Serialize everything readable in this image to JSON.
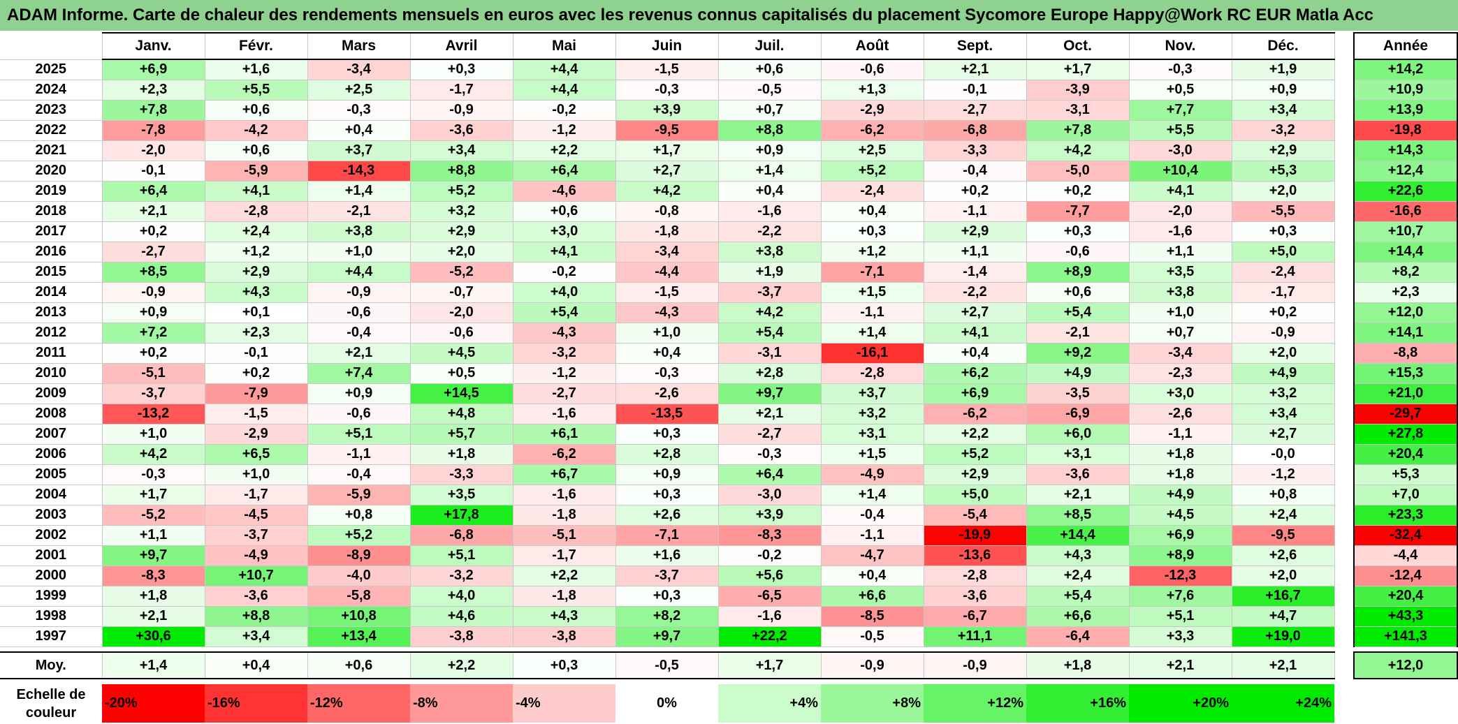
{
  "title": "ADAM Informe. Carte de chaleur des rendements mensuels en euros avec les revenus connus capitalisés du placement Sycomore Europe Happy@Work RC EUR Matla Acc",
  "chart_data": {
    "type": "heatmap",
    "title": "ADAM Informe. Carte de chaleur des rendements mensuels en euros avec les revenus connus capitalisés du placement Sycomore Europe Happy@Work RC EUR Matla Acc",
    "months": [
      "Janv.",
      "Févr.",
      "Mars",
      "Avril",
      "Mai",
      "Juin",
      "Juil.",
      "Août",
      "Sept.",
      "Oct.",
      "Nov.",
      "Déc."
    ],
    "year_header": "Année",
    "avg_label": "Moy.",
    "rows": [
      {
        "year": "2025",
        "values": [
          "+6,9",
          "+1,6",
          "-3,4",
          "+0,3",
          "+4,4",
          "-1,5",
          "+0,6",
          "-0,6",
          "+2,1",
          "+1,7",
          "-0,3",
          "+1,9"
        ],
        "annual": "+14,2"
      },
      {
        "year": "2024",
        "values": [
          "+2,3",
          "+5,5",
          "+2,5",
          "-1,7",
          "+4,4",
          "-0,3",
          "-0,5",
          "+1,3",
          "-0,1",
          "-3,9",
          "+0,5",
          "+0,9"
        ],
        "annual": "+10,9"
      },
      {
        "year": "2023",
        "values": [
          "+7,8",
          "+0,6",
          "-0,3",
          "-0,9",
          "-0,2",
          "+3,9",
          "+0,7",
          "-2,9",
          "-2,7",
          "-3,1",
          "+7,7",
          "+3,4"
        ],
        "annual": "+13,9"
      },
      {
        "year": "2022",
        "values": [
          "-7,8",
          "-4,2",
          "+0,4",
          "-3,6",
          "-1,2",
          "-9,5",
          "+8,8",
          "-6,2",
          "-6,8",
          "+7,8",
          "+5,5",
          "-3,2"
        ],
        "annual": "-19,8"
      },
      {
        "year": "2021",
        "values": [
          "-2,0",
          "+0,6",
          "+3,7",
          "+3,4",
          "+2,2",
          "+1,7",
          "+0,9",
          "+2,5",
          "-3,3",
          "+4,2",
          "-3,0",
          "+2,9"
        ],
        "annual": "+14,3"
      },
      {
        "year": "2020",
        "values": [
          "-0,1",
          "-5,9",
          "-14,3",
          "+8,8",
          "+6,4",
          "+2,7",
          "+1,4",
          "+5,2",
          "-0,4",
          "-5,0",
          "+10,4",
          "+5,3"
        ],
        "annual": "+12,4"
      },
      {
        "year": "2019",
        "values": [
          "+6,4",
          "+4,1",
          "+1,4",
          "+5,2",
          "-4,6",
          "+4,2",
          "+0,4",
          "-2,4",
          "+0,2",
          "+0,2",
          "+4,1",
          "+2,0"
        ],
        "annual": "+22,6"
      },
      {
        "year": "2018",
        "values": [
          "+2,1",
          "-2,8",
          "-2,1",
          "+3,2",
          "+0,6",
          "-0,8",
          "-1,6",
          "+0,4",
          "-1,1",
          "-7,7",
          "-2,0",
          "-5,5"
        ],
        "annual": "-16,6"
      },
      {
        "year": "2017",
        "values": [
          "+0,2",
          "+2,4",
          "+3,8",
          "+2,9",
          "+3,0",
          "-1,8",
          "-2,2",
          "+0,3",
          "+2,9",
          "+0,3",
          "-1,6",
          "+0,3"
        ],
        "annual": "+10,7"
      },
      {
        "year": "2016",
        "values": [
          "-2,7",
          "+1,2",
          "+1,0",
          "+2,0",
          "+4,1",
          "-3,4",
          "+3,8",
          "+1,2",
          "+1,1",
          "-0,6",
          "+1,1",
          "+5,0"
        ],
        "annual": "+14,4"
      },
      {
        "year": "2015",
        "values": [
          "+8,5",
          "+2,9",
          "+4,4",
          "-5,2",
          "-0,2",
          "-4,4",
          "+1,9",
          "-7,1",
          "-1,4",
          "+8,9",
          "+3,5",
          "-2,4"
        ],
        "annual": "+8,2"
      },
      {
        "year": "2014",
        "values": [
          "-0,9",
          "+4,3",
          "-0,9",
          "-0,7",
          "+4,0",
          "-1,5",
          "-3,7",
          "+1,5",
          "-2,2",
          "+0,6",
          "+3,8",
          "-1,7"
        ],
        "annual": "+2,3"
      },
      {
        "year": "2013",
        "values": [
          "+0,9",
          "+0,1",
          "-0,6",
          "-2,0",
          "+5,4",
          "-4,3",
          "+4,2",
          "-1,1",
          "+2,7",
          "+5,4",
          "+1,0",
          "+0,2"
        ],
        "annual": "+12,0"
      },
      {
        "year": "2012",
        "values": [
          "+7,2",
          "+2,3",
          "-0,4",
          "-0,6",
          "-4,3",
          "+1,0",
          "+5,4",
          "+1,4",
          "+4,1",
          "-2,1",
          "+0,7",
          "-0,9"
        ],
        "annual": "+14,1"
      },
      {
        "year": "2011",
        "values": [
          "+0,2",
          "-0,1",
          "+2,1",
          "+4,5",
          "-3,2",
          "+0,4",
          "-3,1",
          "-16,1",
          "+0,4",
          "+9,2",
          "-3,4",
          "+2,0"
        ],
        "annual": "-8,8"
      },
      {
        "year": "2010",
        "values": [
          "-5,1",
          "+0,2",
          "+7,4",
          "+0,5",
          "-1,2",
          "-0,3",
          "+2,8",
          "-2,8",
          "+6,2",
          "+4,9",
          "-2,3",
          "+4,9"
        ],
        "annual": "+15,3"
      },
      {
        "year": "2009",
        "values": [
          "-3,7",
          "-7,9",
          "+0,9",
          "+14,5",
          "-2,7",
          "-2,6",
          "+9,7",
          "+3,7",
          "+6,9",
          "-3,5",
          "+3,0",
          "+3,2"
        ],
        "annual": "+21,0"
      },
      {
        "year": "2008",
        "values": [
          "-13,2",
          "-1,5",
          "-0,6",
          "+4,8",
          "-1,6",
          "-13,5",
          "+2,1",
          "+3,2",
          "-6,2",
          "-6,9",
          "-2,6",
          "+3,4"
        ],
        "annual": "-29,7"
      },
      {
        "year": "2007",
        "values": [
          "+1,0",
          "-2,9",
          "+5,1",
          "+5,7",
          "+6,1",
          "+0,3",
          "-2,7",
          "+3,1",
          "+2,2",
          "+6,0",
          "-1,1",
          "+2,7"
        ],
        "annual": "+27,8"
      },
      {
        "year": "2006",
        "values": [
          "+4,2",
          "+6,5",
          "-1,1",
          "+1,8",
          "-6,2",
          "+2,8",
          "-0,3",
          "+1,5",
          "+5,2",
          "+3,1",
          "+1,8",
          "-0,0"
        ],
        "annual": "+20,4"
      },
      {
        "year": "2005",
        "values": [
          "-0,3",
          "+1,0",
          "-0,4",
          "-3,3",
          "+6,7",
          "+0,9",
          "+6,4",
          "-4,9",
          "+2,9",
          "-3,6",
          "+1,8",
          "-1,2"
        ],
        "annual": "+5,3"
      },
      {
        "year": "2004",
        "values": [
          "+1,7",
          "-1,7",
          "-5,9",
          "+3,5",
          "-1,6",
          "+0,3",
          "-3,0",
          "+1,4",
          "+5,0",
          "+2,1",
          "+4,9",
          "+0,8"
        ],
        "annual": "+7,0"
      },
      {
        "year": "2003",
        "values": [
          "-5,2",
          "-4,5",
          "+0,8",
          "+17,8",
          "-1,8",
          "+2,6",
          "+3,9",
          "-0,4",
          "-5,4",
          "+8,5",
          "+4,5",
          "+2,4"
        ],
        "annual": "+23,3"
      },
      {
        "year": "2002",
        "values": [
          "+1,1",
          "-3,7",
          "+5,2",
          "-6,8",
          "-5,1",
          "-7,1",
          "-8,3",
          "-1,1",
          "-19,9",
          "+14,4",
          "+6,9",
          "-9,5"
        ],
        "annual": "-32,4"
      },
      {
        "year": "2001",
        "values": [
          "+9,7",
          "-4,9",
          "-8,9",
          "+5,1",
          "-1,7",
          "+1,6",
          "-0,2",
          "-4,7",
          "-13,6",
          "+4,3",
          "+8,9",
          "+2,6"
        ],
        "annual": "-4,4"
      },
      {
        "year": "2000",
        "values": [
          "-8,3",
          "+10,7",
          "-4,0",
          "-3,2",
          "+2,2",
          "-3,7",
          "+5,6",
          "+0,4",
          "-2,8",
          "+2,4",
          "-12,3",
          "+2,0"
        ],
        "annual": "-12,4"
      },
      {
        "year": "1999",
        "values": [
          "+1,8",
          "-3,6",
          "-5,8",
          "+4,0",
          "-1,8",
          "+0,3",
          "-6,5",
          "+6,6",
          "-3,6",
          "+5,4",
          "+7,6",
          "+16,7"
        ],
        "annual": "+20,4"
      },
      {
        "year": "1998",
        "values": [
          "+2,1",
          "+8,8",
          "+10,8",
          "+4,6",
          "+4,3",
          "+8,2",
          "-1,6",
          "-8,5",
          "-6,7",
          "+6,6",
          "+5,1",
          "+4,7"
        ],
        "annual": "+43,3"
      },
      {
        "year": "1997",
        "values": [
          "+30,6",
          "+3,4",
          "+13,4",
          "-3,8",
          "-3,8",
          "+9,7",
          "+22,2",
          "-0,5",
          "+11,1",
          "-6,4",
          "+3,3",
          "+19,0"
        ],
        "annual": "+141,3"
      }
    ],
    "averages": [
      "+1,4",
      "+0,4",
      "+0,6",
      "+2,2",
      "+0,3",
      "-0,5",
      "+1,7",
      "-0,9",
      "-0,9",
      "+1,8",
      "+2,1",
      "+2,1"
    ],
    "average_annual": "+12,0",
    "color_scale": {
      "label": "Echelle de couleur",
      "steps": [
        "-20%",
        "-16%",
        "-12%",
        "-8%",
        "-4%",
        "0%",
        "+4%",
        "+8%",
        "+12%",
        "+16%",
        "+20%",
        "+24%"
      ],
      "negative_color": "#ff0000",
      "neutral_color": "#ffffff",
      "positive_color": "#00ff00"
    }
  }
}
